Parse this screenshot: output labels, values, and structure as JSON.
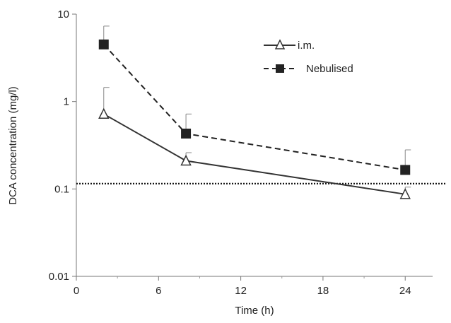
{
  "chart_data": {
    "type": "line",
    "title": "",
    "xlabel": "Time (h)",
    "ylabel": "DCA concentration (mg/l)",
    "xlim": [
      0,
      26
    ],
    "ylim": [
      0.01,
      10
    ],
    "yscale": "log",
    "x_ticks": [
      0,
      6,
      12,
      18,
      24
    ],
    "x_tick_labels": [
      "0",
      "6",
      "12",
      "18",
      "24"
    ],
    "y_ticks": [
      0.01,
      0.1,
      1,
      10
    ],
    "y_tick_labels": [
      "0.01",
      "0.1",
      "1",
      "10"
    ],
    "grid": false,
    "legend_position": "top-right",
    "series": [
      {
        "name": "i.m.",
        "line_style": "solid",
        "marker": "open-triangle",
        "color": "#333333",
        "x": [
          2,
          8,
          24
        ],
        "y": [
          0.72,
          0.21,
          0.087
        ],
        "error_upper": [
          1.45,
          0.26,
          0.105
        ]
      },
      {
        "name": "Nebulised",
        "line_style": "dashed",
        "marker": "filled-square",
        "color": "#222222",
        "x": [
          2,
          8,
          24
        ],
        "y": [
          4.5,
          0.43,
          0.165
        ],
        "error_upper": [
          7.3,
          0.72,
          0.28
        ]
      }
    ],
    "reference_line": {
      "y": 0.115,
      "style": "dotted",
      "color": "#111111"
    }
  }
}
